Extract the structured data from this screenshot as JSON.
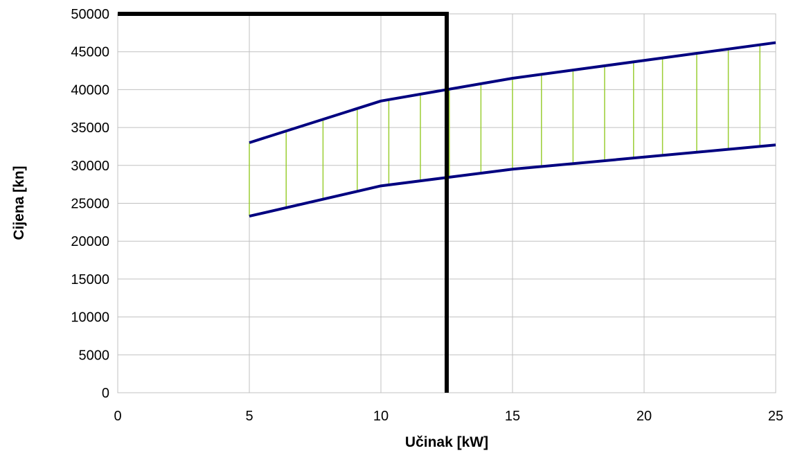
{
  "chart_data": {
    "type": "line",
    "title": "",
    "xlabel": "Učinak [kW]",
    "ylabel": "Cijena [kn]",
    "xlim": [
      0,
      25
    ],
    "ylim": [
      0,
      50000
    ],
    "xticks": [
      0,
      5,
      10,
      15,
      20,
      25
    ],
    "yticks": [
      0,
      5000,
      10000,
      15000,
      20000,
      25000,
      30000,
      35000,
      40000,
      45000,
      50000
    ],
    "grid": true,
    "legend": "none",
    "series": [
      {
        "color": "#000080",
        "points": [
          [
            5,
            33000
          ],
          [
            10,
            38500
          ],
          [
            15,
            41500
          ],
          [
            25,
            46200
          ]
        ]
      },
      {
        "color": "#000080",
        "points": [
          [
            5,
            23300
          ],
          [
            10,
            27300
          ],
          [
            15,
            29500
          ],
          [
            25,
            32700
          ]
        ]
      }
    ],
    "band": {
      "color": "#9acd32",
      "hatch_x": [
        5,
        6.4,
        7.8,
        9.1,
        10.3,
        11.5,
        12.6,
        13.8,
        15,
        16.1,
        17.3,
        18.5,
        19.6,
        20.7,
        22,
        23.2,
        24.4
      ]
    },
    "threshold": {
      "color": "#000000",
      "points": [
        [
          0,
          50000
        ],
        [
          12.5,
          50000
        ],
        [
          12.5,
          0
        ]
      ]
    }
  }
}
